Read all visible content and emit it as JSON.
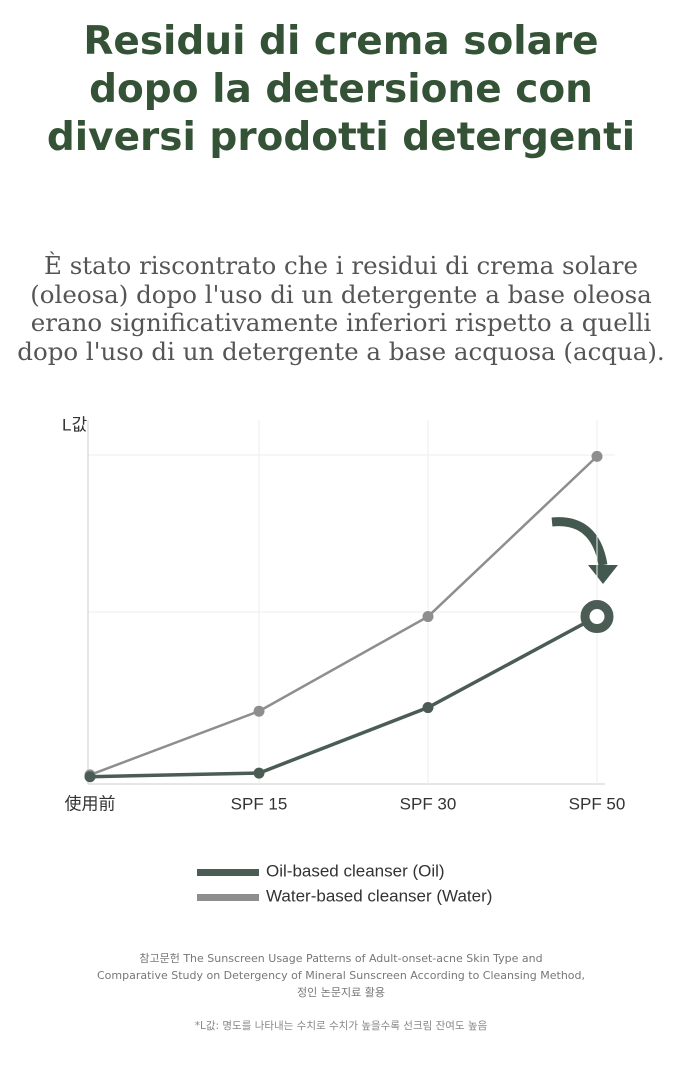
{
  "header": {
    "title_lines": [
      "Residui di crema solare",
      "dopo la detersione con",
      "diversi prodotti detergenti"
    ]
  },
  "description_lines": [
    "È stato riscontrato che i residui di crema solare",
    "(oleosa) dopo l'uso di un detergente a base oleosa",
    "erano significativamente inferiori rispetto a quelli",
    "dopo l'uso di un detergente a base acquosa (acqua)."
  ],
  "chart_data": {
    "type": "line",
    "y_label": "L값",
    "categories": [
      "使用前",
      "SPF 15",
      "SPF 30",
      "SPF 50"
    ],
    "series": [
      {
        "name": "Oil-based cleanser (Oil)",
        "color": "#4b5c55",
        "values": [
          2,
          3,
          21,
          46
        ]
      },
      {
        "name": "Water-based cleanser (Water)",
        "color": "#8e8e8e",
        "values": [
          2.5,
          20,
          46,
          90
        ]
      }
    ],
    "ylim": [
      0,
      100
    ]
  },
  "source_lines": [
    "참고문헌 The Sunscreen Usage Patterns of Adult-onset-acne Skin Type and",
    "Comparative Study on Detergency of Mineral Sunscreen According to Cleansing Method,",
    "정인 논문지료 활용"
  ],
  "footnote": "*L값: 명도를 나타내는 수치로 수치가 높을수록 선크림 잔여도 높음"
}
